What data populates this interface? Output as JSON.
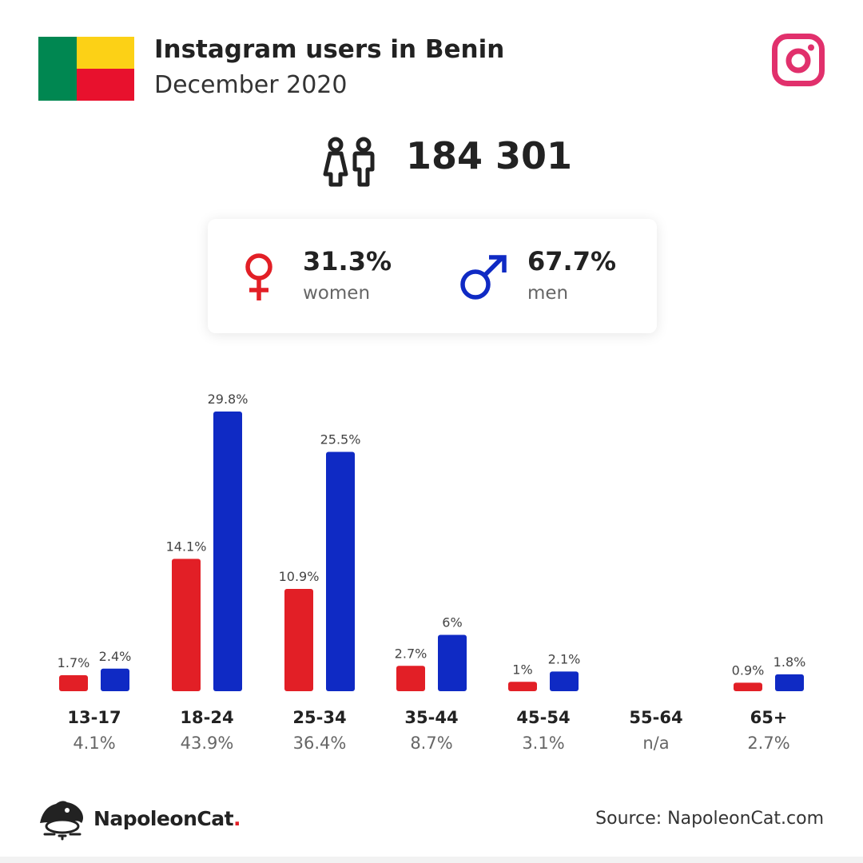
{
  "header": {
    "title": "Instagram users in Benin",
    "subtitle": "December 2020"
  },
  "flag": {
    "colors": {
      "green": "#008751",
      "yellow": "#FCD116",
      "red": "#E8112D"
    }
  },
  "icons": {
    "instagram": "instagram-icon",
    "users": "users-icon",
    "female": "female-symbol-icon",
    "male": "male-symbol-icon",
    "brand": "napoleoncat-logo-icon"
  },
  "total_users": "184 301",
  "gender": {
    "women": {
      "percent": "31.3%",
      "label": "women",
      "color": "#E21F26"
    },
    "men": {
      "percent": "67.7%",
      "label": "men",
      "color": "#0F2AC4"
    }
  },
  "chart_data": {
    "type": "bar",
    "categories": [
      "13-17",
      "18-24",
      "25-34",
      "35-44",
      "45-54",
      "55-64",
      "65+"
    ],
    "category_totals": [
      "4.1%",
      "43.9%",
      "36.4%",
      "8.7%",
      "3.1%",
      "n/a",
      "2.7%"
    ],
    "series": [
      {
        "key": "women",
        "color": "#E21F26",
        "values": [
          1.7,
          14.1,
          10.9,
          2.7,
          1,
          null,
          0.9
        ],
        "labels": [
          "1.7%",
          "14.1%",
          "10.9%",
          "2.7%",
          "1%",
          "",
          "0.9%"
        ]
      },
      {
        "key": "men",
        "color": "#0F2AC4",
        "values": [
          2.4,
          29.8,
          25.5,
          6,
          2.1,
          null,
          1.8
        ],
        "labels": [
          "2.4%",
          "29.8%",
          "25.5%",
          "6%",
          "2.1%",
          "",
          "1.8%"
        ]
      }
    ],
    "ylim": [
      0,
      30
    ],
    "grid": false,
    "legend": "none"
  },
  "footer": {
    "brand_name": "NapoleonCat",
    "brand_dot": ".",
    "source": "Source: NapoleonCat.com"
  }
}
